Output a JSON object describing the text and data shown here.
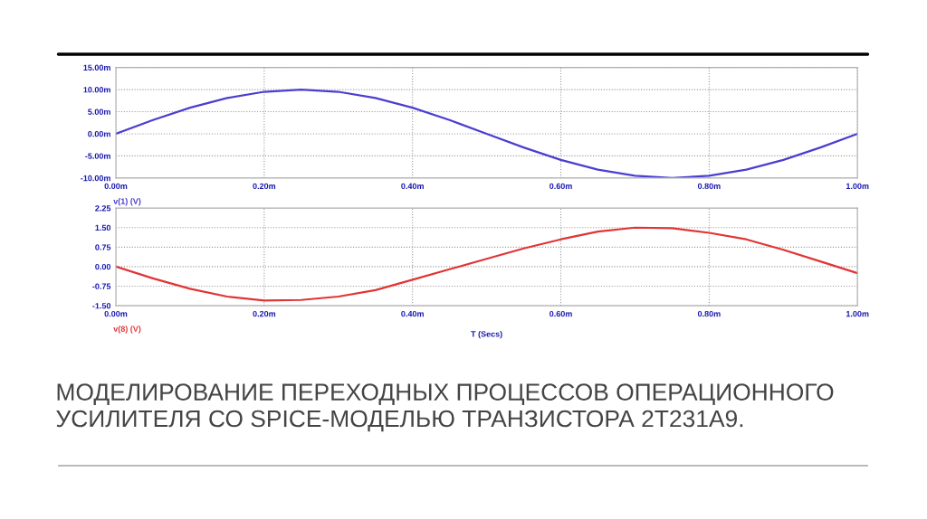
{
  "chart_data": [
    {
      "type": "line",
      "x": [
        0,
        0.05,
        0.1,
        0.15,
        0.2,
        0.25,
        0.3,
        0.35,
        0.4,
        0.45,
        0.5,
        0.55,
        0.6,
        0.65,
        0.7,
        0.75,
        0.8,
        0.85,
        0.9,
        0.95,
        1.0
      ],
      "series": [
        {
          "name": "v(1) (V)",
          "color": "#4a3fd0",
          "values": [
            0,
            3.1,
            5.9,
            8.1,
            9.5,
            10,
            9.5,
            8.1,
            5.9,
            3.1,
            0,
            -3.1,
            -5.9,
            -8.1,
            -9.5,
            -10,
            -9.5,
            -8.1,
            -5.9,
            -3.1,
            0
          ]
        }
      ],
      "xlim": [
        0,
        1.0
      ],
      "xticks": [
        {
          "value": 0,
          "label": "0.00m"
        },
        {
          "value": 0.2,
          "label": "0.20m"
        },
        {
          "value": 0.4,
          "label": "0.40m"
        },
        {
          "value": 0.6,
          "label": "0.60m"
        },
        {
          "value": 0.8,
          "label": "0.80m"
        },
        {
          "value": 1.0,
          "label": "1.00m"
        }
      ],
      "ylim": [
        -10,
        15
      ],
      "yticks": [
        {
          "value": -10,
          "label": "-10.00m"
        },
        {
          "value": -5,
          "label": "-5.00m"
        },
        {
          "value": 0,
          "label": "0.00m"
        },
        {
          "value": 5,
          "label": "5.00m"
        },
        {
          "value": 10,
          "label": "10.00m"
        },
        {
          "value": 15,
          "label": "15.00m"
        }
      ],
      "grid": true,
      "legend": false,
      "line_style": "solid"
    },
    {
      "type": "line",
      "x": [
        0,
        0.05,
        0.1,
        0.15,
        0.2,
        0.25,
        0.3,
        0.35,
        0.4,
        0.45,
        0.5,
        0.55,
        0.6,
        0.65,
        0.7,
        0.75,
        0.8,
        0.85,
        0.9,
        0.95,
        1.0
      ],
      "series": [
        {
          "name": "v(8) (V)",
          "color": "#e03535",
          "values": [
            0,
            -0.45,
            -0.85,
            -1.15,
            -1.3,
            -1.28,
            -1.15,
            -0.9,
            -0.5,
            -0.1,
            0.3,
            0.7,
            1.05,
            1.35,
            1.5,
            1.48,
            1.3,
            1.05,
            0.65,
            0.2,
            -0.25
          ]
        }
      ],
      "xlabel": "T (Secs)",
      "xlim": [
        0,
        1.0
      ],
      "xticks": [
        {
          "value": 0,
          "label": "0.00m"
        },
        {
          "value": 0.2,
          "label": "0.20m"
        },
        {
          "value": 0.4,
          "label": "0.40m"
        },
        {
          "value": 0.6,
          "label": "0.60m"
        },
        {
          "value": 0.8,
          "label": "0.80m"
        },
        {
          "value": 1.0,
          "label": "1.00m"
        }
      ],
      "ylim": [
        -1.5,
        2.25
      ],
      "yticks": [
        {
          "value": -1.5,
          "label": "-1.50"
        },
        {
          "value": -0.75,
          "label": "-0.75"
        },
        {
          "value": 0,
          "label": "0.00"
        },
        {
          "value": 0.75,
          "label": "0.75"
        },
        {
          "value": 1.5,
          "label": "1.50"
        },
        {
          "value": 2.25,
          "label": "2.25"
        }
      ],
      "grid": true,
      "legend": false,
      "line_style": "solid",
      "annotations": [
        "МОДЕЛИРОВАНИЕ ПЕРЕХОДНЫХ ПРОЦЕССОВ ОПЕРАЦИОННОГО УСИЛИТЕЛЯ СО SPICE-МОДЕЛЬЮ ТРАНЗИСТОРА 2Т231А9."
      ]
    }
  ]
}
